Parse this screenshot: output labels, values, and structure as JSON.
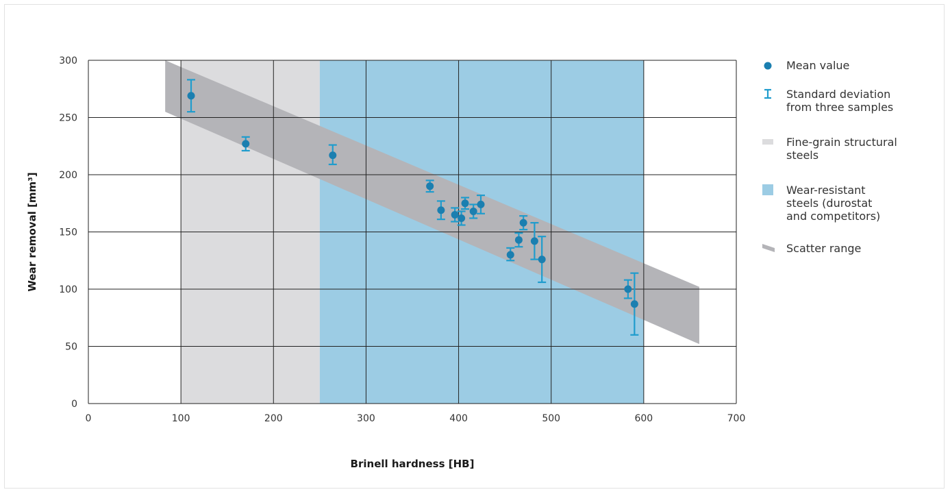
{
  "chart_data": {
    "type": "scatter",
    "xlabel": "Brinell hardness [HB]",
    "ylabel": "Wear removal [mm³]",
    "xlim": [
      0,
      700
    ],
    "ylim": [
      0,
      300
    ],
    "xticks": [
      0,
      100,
      200,
      300,
      400,
      500,
      600,
      700
    ],
    "yticks": [
      0,
      50,
      100,
      150,
      200,
      250,
      300
    ],
    "grid": true,
    "legend_position": "right",
    "regions": [
      {
        "name": "Fine-grain structural steels",
        "x_range": [
          100,
          250
        ],
        "color": "#dcdcde"
      },
      {
        "name": "Wear-resistant steels (durostat and competitors)",
        "x_range": [
          250,
          600
        ],
        "color": "#9ccce4"
      }
    ],
    "scatter_band": {
      "name": "Scatter range",
      "color": "#b4b4b8",
      "polygon": [
        [
          83,
          300
        ],
        [
          660,
          102
        ],
        [
          660,
          52
        ],
        [
          83,
          255
        ]
      ]
    },
    "points": [
      {
        "x": 111,
        "y": 269,
        "err_low": 255,
        "err_high": 283
      },
      {
        "x": 170,
        "y": 227,
        "err_low": 221,
        "err_high": 233
      },
      {
        "x": 264,
        "y": 217,
        "err_low": 209,
        "err_high": 226
      },
      {
        "x": 369,
        "y": 190,
        "err_low": 185,
        "err_high": 195
      },
      {
        "x": 381,
        "y": 169,
        "err_low": 161,
        "err_high": 177
      },
      {
        "x": 396,
        "y": 165,
        "err_low": 159,
        "err_high": 171
      },
      {
        "x": 403,
        "y": 162,
        "err_low": 156,
        "err_high": 168
      },
      {
        "x": 407,
        "y": 175,
        "err_low": 170,
        "err_high": 180
      },
      {
        "x": 416,
        "y": 168,
        "err_low": 162,
        "err_high": 174
      },
      {
        "x": 424,
        "y": 174,
        "err_low": 166,
        "err_high": 182
      },
      {
        "x": 456,
        "y": 130,
        "err_low": 125,
        "err_high": 136
      },
      {
        "x": 465,
        "y": 143,
        "err_low": 137,
        "err_high": 149
      },
      {
        "x": 470,
        "y": 158,
        "err_low": 152,
        "err_high": 164
      },
      {
        "x": 482,
        "y": 142,
        "err_low": 126,
        "err_high": 158
      },
      {
        "x": 490,
        "y": 126,
        "err_low": 106,
        "err_high": 146
      },
      {
        "x": 583,
        "y": 100,
        "err_low": 92,
        "err_high": 108
      },
      {
        "x": 590,
        "y": 87,
        "err_low": 60,
        "err_high": 114
      }
    ],
    "colors": {
      "point": "#1b7fb0",
      "errorbar": "#1f9ccd",
      "grid": "#222222"
    }
  },
  "legend": [
    {
      "key": "mean",
      "lines": [
        "Mean value"
      ]
    },
    {
      "key": "stddev",
      "lines": [
        "Standard deviation",
        "from three samples"
      ]
    },
    {
      "key": "fine",
      "lines": [
        "Fine-grain structural",
        "steels"
      ]
    },
    {
      "key": "wear",
      "lines": [
        "Wear-resistant",
        "steels (durostat",
        "and competitors)"
      ]
    },
    {
      "key": "scatter",
      "lines": [
        "Scatter range"
      ]
    }
  ]
}
